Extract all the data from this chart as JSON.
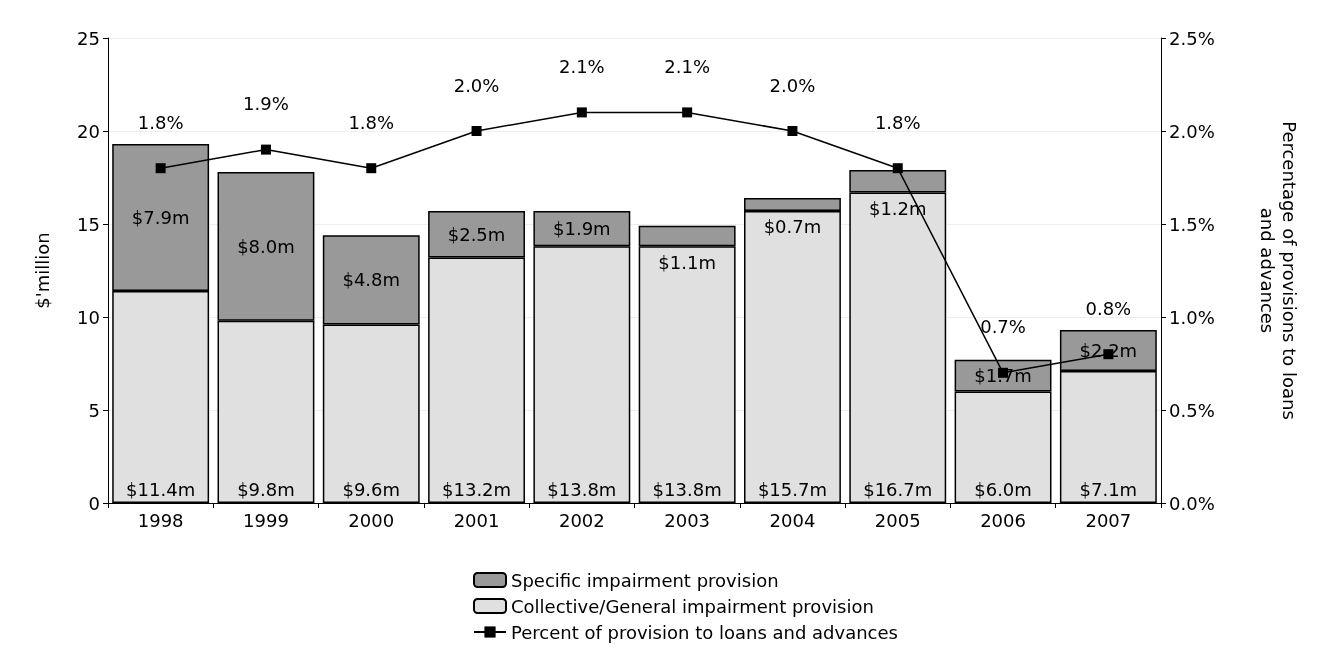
{
  "chart_data": {
    "type": "bar",
    "stacked": true,
    "ylabel": "$'million",
    "y2label": "Percentage of provisions to loans\nand advances",
    "categories": [
      "1998",
      "1999",
      "2000",
      "2001",
      "2002",
      "2003",
      "2004",
      "2005",
      "2006",
      "2007"
    ],
    "series": [
      {
        "name": "Collective/General impairment provision",
        "color": "#e0e0e0",
        "values": [
          11.4,
          9.8,
          9.6,
          13.2,
          13.8,
          13.8,
          15.7,
          16.7,
          6.0,
          7.1
        ],
        "value_labels": [
          "$11.4m",
          "$9.8m",
          "$9.6m",
          "$13.2m",
          "$13.8m",
          "$13.8m",
          "$15.7m",
          "$16.7m",
          "$6.0m",
          "$7.1m"
        ]
      },
      {
        "name": "Specific impairment provision",
        "color": "#999999",
        "values": [
          7.9,
          8.0,
          4.8,
          2.5,
          1.9,
          1.1,
          0.7,
          1.2,
          1.7,
          2.2
        ],
        "value_labels": [
          "$7.9m",
          "$8.0m",
          "$4.8m",
          "$2.5m",
          "$1.9m",
          "$1.1m",
          "$0.7m",
          "$1.2m",
          "$1.7m",
          "$2.2m"
        ]
      },
      {
        "name": "Percent of provision to loans and advances",
        "type": "line",
        "axis": "y2",
        "color": "#000000",
        "marker": "square",
        "values": [
          1.8,
          1.9,
          1.8,
          2.0,
          2.1,
          2.1,
          2.0,
          1.8,
          0.7,
          0.8
        ],
        "value_labels": [
          "1.8%",
          "1.9%",
          "1.8%",
          "2.0%",
          "2.1%",
          "2.1%",
          "2.0%",
          "1.8%",
          "0.7%",
          "0.8%"
        ]
      }
    ],
    "ylim": [
      0,
      25
    ],
    "yticks": [
      0,
      5,
      10,
      15,
      20,
      25
    ],
    "y2lim": [
      0,
      2.5
    ],
    "y2ticks": [
      {
        "value": 0,
        "label": "0.0%"
      },
      {
        "value": 0.5,
        "label": "0.5%"
      },
      {
        "value": 1,
        "label": "1.0%"
      },
      {
        "value": 1.5,
        "label": "1.5%"
      },
      {
        "value": 2,
        "label": "2.0%"
      },
      {
        "value": 2.5,
        "label": "2.5%"
      }
    ],
    "grid": "y",
    "legend": "bottom"
  }
}
